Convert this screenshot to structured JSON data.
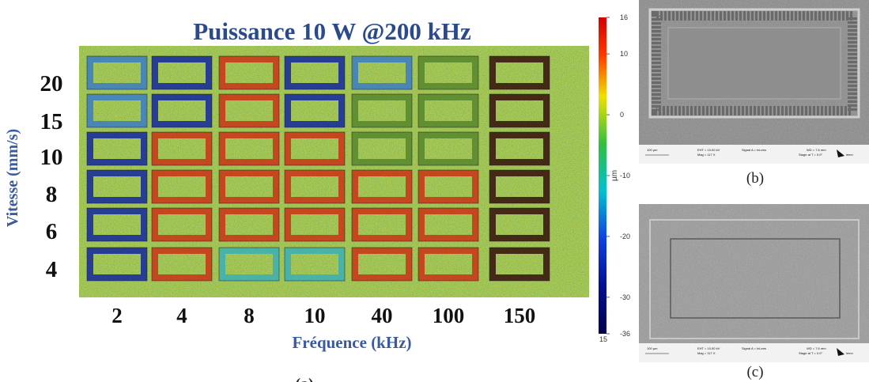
{
  "panel_a": {
    "title": "Puissance 10 W @200 kHz",
    "y_label": "Vitesse (mm/s)",
    "rows": [
      "20",
      "15",
      "10",
      "8",
      "6",
      "4"
    ],
    "x_label": "Fréquence (kHz)",
    "columns": [
      "2",
      "4",
      "8",
      "10",
      "40",
      "100",
      "150"
    ],
    "caption": "(a)"
  },
  "colorbar": {
    "ticks": [
      16,
      10,
      0,
      -10,
      -20,
      -30,
      -36
    ],
    "unit": "µm",
    "footer": "15"
  },
  "panel_b": {
    "caption": "(b)",
    "scale": "100 µm",
    "eht": "EHT = 10.00 kV",
    "mag": "Mag = 117 X",
    "signal": "Signal A = InLens",
    "wd": "WD = 7.6 mm",
    "stage": "Stage at T = 0.0°",
    "logo": "lemn"
  },
  "panel_c": {
    "caption": "(c)",
    "scale": "100 µm",
    "eht": "EHT = 10.00 kV",
    "mag": "Mag = 117 X",
    "signal": "Signal A = InLens",
    "wd": "WD = 7.6 mm",
    "stage": "Stage at T = 0.0°",
    "logo": "lemn"
  }
}
